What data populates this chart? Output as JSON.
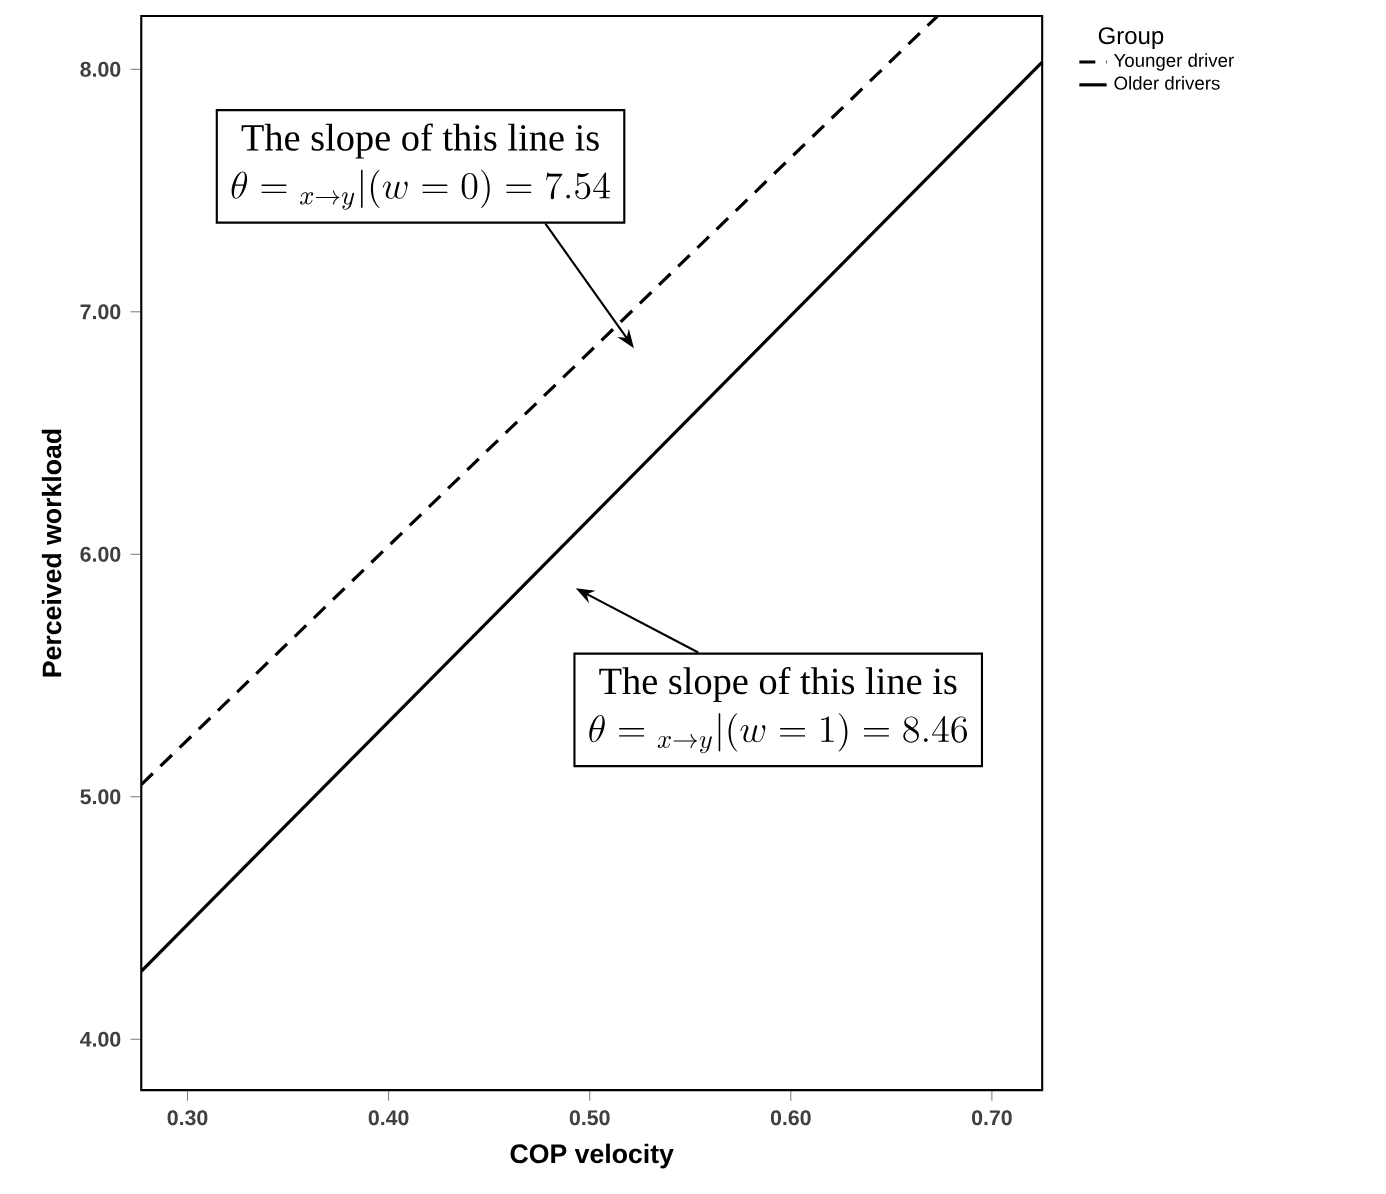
{
  "chart_data": {
    "type": "line",
    "xlabel": "COP velocity",
    "ylabel": "Perceived workload",
    "legend_title": "Group",
    "xlim": [
      0.277,
      0.725
    ],
    "ylim": [
      3.79,
      8.22
    ],
    "xticks": [
      {
        "value": 0.3,
        "label": "0.30"
      },
      {
        "value": 0.4,
        "label": "0.40"
      },
      {
        "value": 0.5,
        "label": "0.50"
      },
      {
        "value": 0.6,
        "label": "0.60"
      },
      {
        "value": 0.7,
        "label": "0.70"
      }
    ],
    "yticks": [
      {
        "value": 4,
        "label": "4.00"
      },
      {
        "value": 5,
        "label": "5.00"
      },
      {
        "value": 6,
        "label": "6.00"
      },
      {
        "value": 7,
        "label": "7.00"
      },
      {
        "value": 8,
        "label": "8.00"
      }
    ],
    "series": [
      {
        "name": "Younger driver",
        "color": "#000000",
        "line_style": "dashed",
        "x": [
          0.277,
          0.673
        ],
        "values": [
          5.05,
          8.22
        ]
      },
      {
        "name": "Older drivers",
        "color": "#000000",
        "line_style": "solid",
        "x": [
          0.277,
          0.725
        ],
        "values": [
          4.28,
          8.03
        ]
      }
    ],
    "legend": "top right",
    "grid": false,
    "marker": "none",
    "annotations": [
      "The slope of this line is",
      "\\theta = {}_{x \\rightarrow y}|( w = 0 ) = 7.54",
      "The slope of this line is",
      "\\theta = {}_{x \\rightarrow y}|( w = 1 ) = 8.46"
    ]
  }
}
